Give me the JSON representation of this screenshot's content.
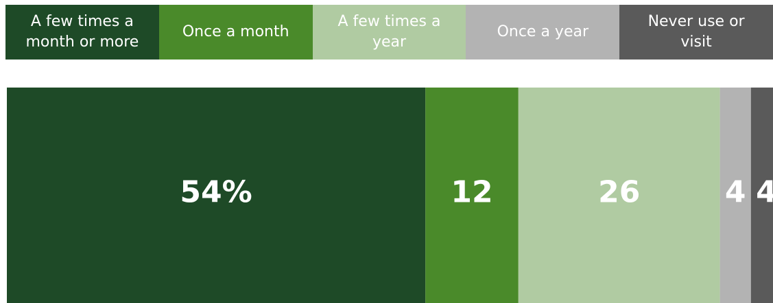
{
  "chart_data": {
    "type": "stacked_bar",
    "xlim": [
      0,
      100
    ],
    "series": [
      {
        "name": "A few times a month or more",
        "color": "#1e4a27",
        "values": [
          54
        ],
        "value_labels": [
          "54%"
        ]
      },
      {
        "name": "Once a month",
        "color": "#4a8a2a",
        "values": [
          12
        ]
      },
      {
        "name": "A few times a year",
        "color": "#b0cba2",
        "values": [
          26
        ]
      },
      {
        "name": "Once a year",
        "color": "#b3b3b3",
        "values": [
          4
        ]
      },
      {
        "name": "Never use or visit",
        "color": "#5a5a5a",
        "values": [
          4
        ]
      }
    ]
  }
}
